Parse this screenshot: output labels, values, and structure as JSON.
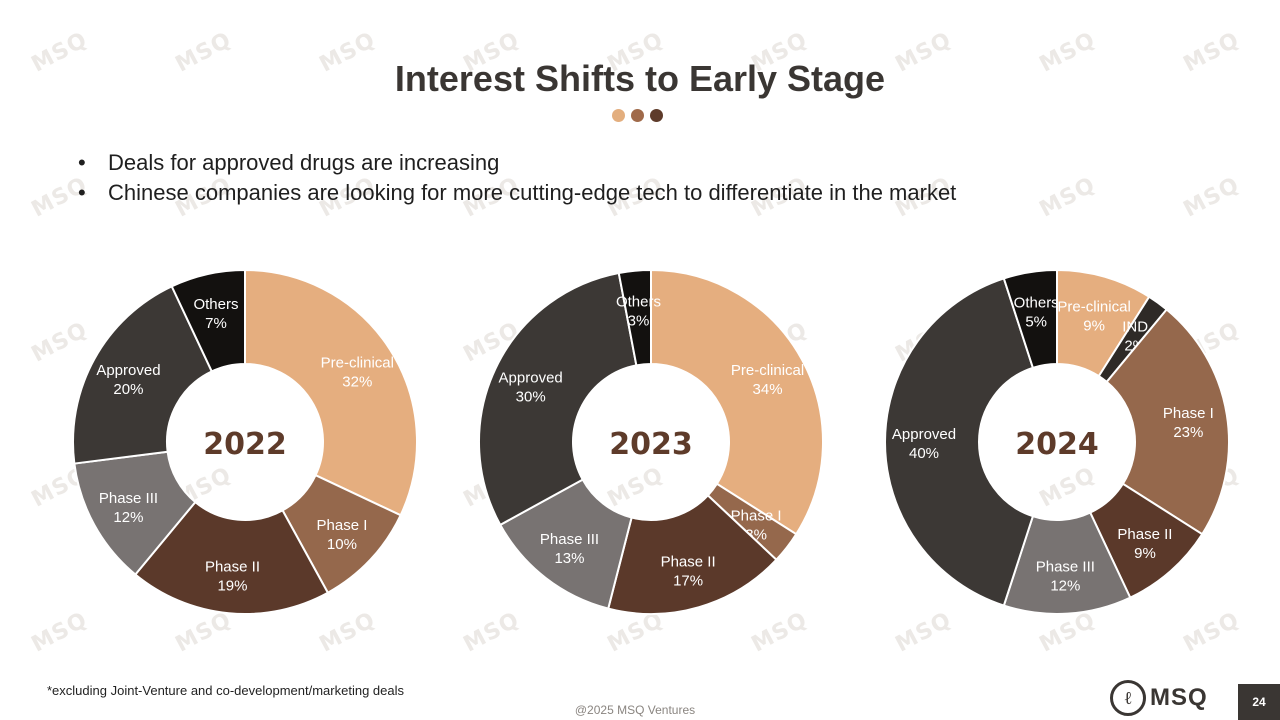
{
  "title": "Interest Shifts to Early Stage",
  "accent_dots": [
    "#e3ae7e",
    "#a06a4a",
    "#5e3b2a"
  ],
  "bullets": [
    "Deals for approved drugs are increasing",
    "Chinese companies are looking for more cutting-edge tech to differentiate in the market"
  ],
  "watermark_text": "MSQ",
  "chart_data": [
    {
      "type": "pie",
      "variant": "donut",
      "center_label": "2022",
      "slices": [
        {
          "label": "Pre-clinical",
          "value": 32,
          "display": "32%",
          "color": "#e5ae7f",
          "text_color": "#ffffff"
        },
        {
          "label": "Phase I",
          "value": 10,
          "display": "10%",
          "color": "#95684c",
          "text_color": "#ffffff"
        },
        {
          "label": "Phase II",
          "value": 19,
          "display": "19%",
          "color": "#5b392a",
          "text_color": "#ffffff"
        },
        {
          "label": "Phase III",
          "value": 12,
          "display": "12%",
          "color": "#787372",
          "text_color": "#ffffff"
        },
        {
          "label": "Approved",
          "value": 20,
          "display": "20%",
          "color": "#3c3835",
          "text_color": "#ffffff"
        },
        {
          "label": "Others",
          "value": 7,
          "display": "7%",
          "color": "#13110f",
          "text_color": "#ffffff"
        }
      ]
    },
    {
      "type": "pie",
      "variant": "donut",
      "center_label": "2023",
      "slices": [
        {
          "label": "Pre-clinical",
          "value": 34,
          "display": "34%",
          "color": "#e5ae7f",
          "text_color": "#ffffff"
        },
        {
          "label": "Phase I",
          "value": 3,
          "display": "3%",
          "color": "#95684c",
          "text_color": "#ffffff"
        },
        {
          "label": "Phase II",
          "value": 17,
          "display": "17%",
          "color": "#5b392a",
          "text_color": "#ffffff"
        },
        {
          "label": "Phase III",
          "value": 13,
          "display": "13%",
          "color": "#787372",
          "text_color": "#ffffff"
        },
        {
          "label": "Approved",
          "value": 30,
          "display": "30%",
          "color": "#3c3835",
          "text_color": "#ffffff"
        },
        {
          "label": "Others",
          "value": 3,
          "display": "3%",
          "color": "#13110f",
          "text_color": "#ffffff"
        }
      ]
    },
    {
      "type": "pie",
      "variant": "donut",
      "center_label": "2024",
      "slices": [
        {
          "label": "Pre-clinical",
          "value": 9,
          "display": "9%",
          "color": "#e5ae7f",
          "text_color": "#ffffff"
        },
        {
          "label": "IND",
          "value": 2,
          "display": "2%",
          "color": "#2e2a27",
          "text_color": "#ffffff"
        },
        {
          "label": "Phase I",
          "value": 23,
          "display": "23%",
          "color": "#95684c",
          "text_color": "#ffffff"
        },
        {
          "label": "Phase II",
          "value": 9,
          "display": "9%",
          "color": "#5b392a",
          "text_color": "#ffffff"
        },
        {
          "label": "Phase III",
          "value": 12,
          "display": "12%",
          "color": "#787372",
          "text_color": "#ffffff"
        },
        {
          "label": "Approved",
          "value": 40,
          "display": "40%",
          "color": "#3c3835",
          "text_color": "#ffffff"
        },
        {
          "label": "Others",
          "value": 5,
          "display": "5%",
          "color": "#13110f",
          "text_color": "#ffffff"
        }
      ]
    }
  ],
  "footnote": "*excluding Joint-Venture and co-development/marketing deals",
  "copyright": "@2025 MSQ Ventures",
  "logo": {
    "mark": "ℓ",
    "text": "MSQ"
  },
  "page_number": "24"
}
